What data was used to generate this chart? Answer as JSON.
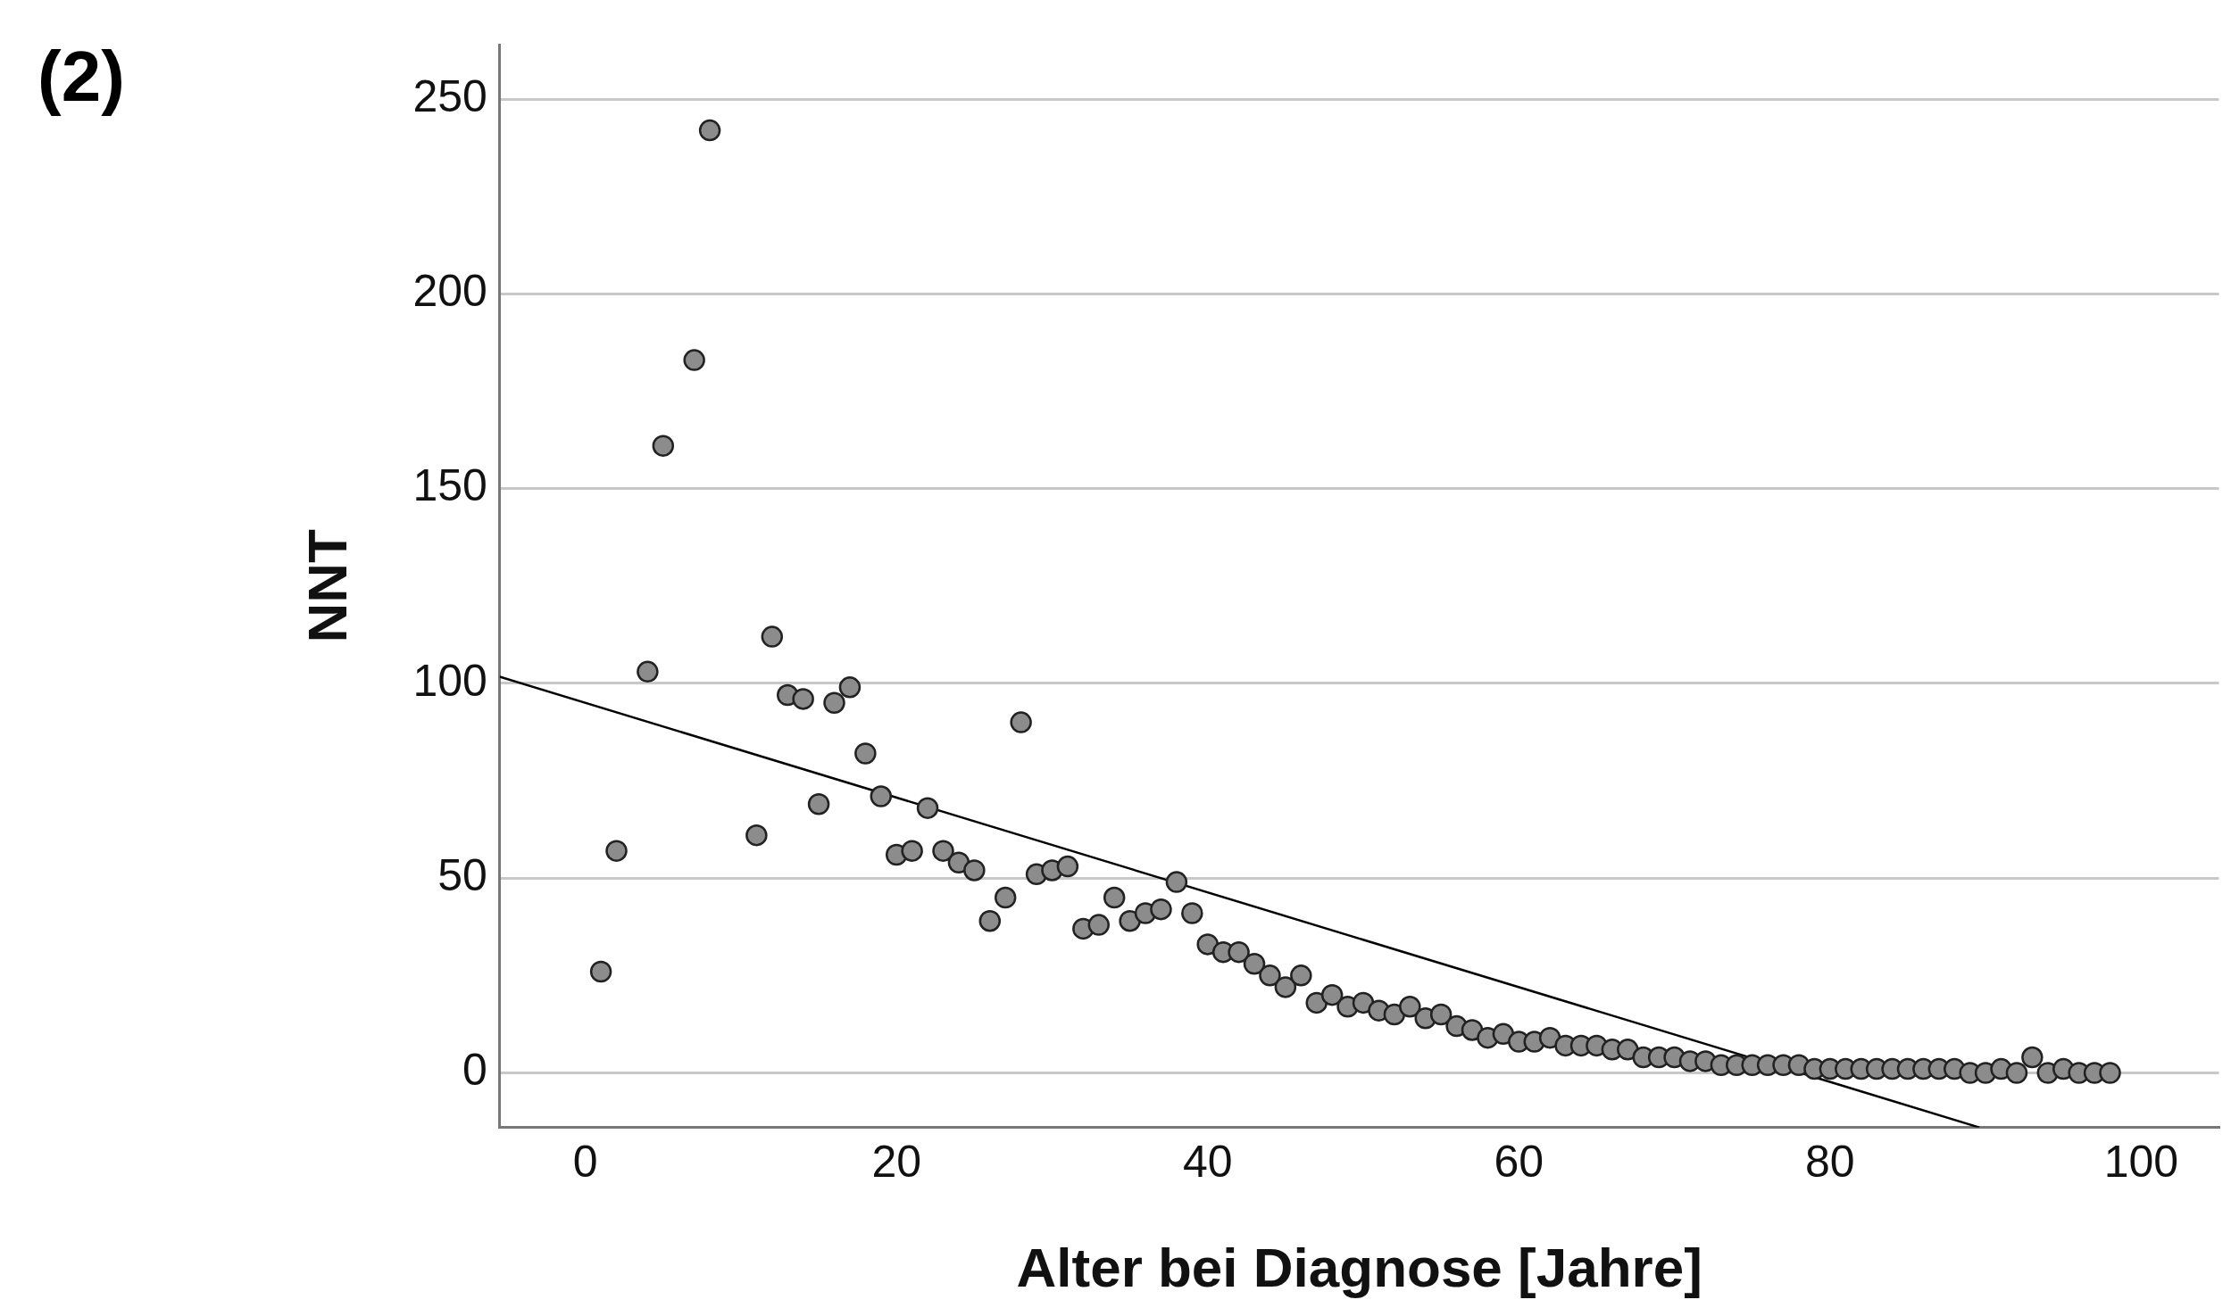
{
  "chart_data": {
    "type": "scatter",
    "title": "(2)",
    "xlabel": "Alter bei Diagnose [Jahre]",
    "ylabel": "NNT",
    "xlim": [
      -5.5,
      105
    ],
    "xticks": [
      0,
      20,
      40,
      60,
      80,
      100
    ],
    "ylim": [
      -14,
      264
    ],
    "yticks": [
      0,
      50,
      100,
      150,
      200,
      250
    ],
    "grid": "y",
    "legend": false,
    "marker": "circle",
    "series": [
      {
        "color": "#8c8c8c",
        "x": [
          1,
          2,
          4,
          5,
          7,
          8,
          11,
          12,
          13,
          14,
          15,
          16,
          17,
          18,
          19,
          20,
          21,
          22,
          23,
          24,
          25,
          26,
          27,
          28,
          29,
          30,
          31,
          32,
          33,
          34,
          35,
          36,
          37,
          38,
          39,
          40,
          41,
          42,
          43,
          44,
          45,
          46,
          47,
          48,
          49,
          50,
          51,
          52,
          53,
          54,
          55,
          56,
          57,
          58,
          59,
          60,
          61,
          62,
          63,
          64,
          65,
          66,
          67,
          68,
          69,
          70,
          71,
          72,
          73,
          74,
          75,
          76,
          77,
          78,
          79,
          80,
          81,
          82,
          83,
          84,
          85,
          86,
          87,
          88,
          89,
          90,
          91,
          92,
          93,
          94,
          95,
          96,
          97,
          98
        ],
        "values": [
          26,
          57,
          103,
          161,
          183,
          242,
          61,
          112,
          97,
          96,
          69,
          95,
          99,
          82,
          71,
          56,
          57,
          68,
          57,
          54,
          52,
          39,
          45,
          90,
          51,
          52,
          53,
          37,
          38,
          45,
          39,
          41,
          42,
          49,
          41,
          33,
          31,
          31,
          28,
          25,
          22,
          25,
          18,
          20,
          17,
          18,
          16,
          15,
          17,
          14,
          15,
          12,
          11,
          9,
          10,
          8,
          8,
          9,
          7,
          7,
          7,
          6,
          6,
          4,
          4,
          4,
          3,
          3,
          2,
          2,
          2,
          2,
          2,
          2,
          1,
          1,
          1,
          1,
          1,
          1,
          1,
          1,
          1,
          1,
          0,
          0,
          1,
          0,
          4,
          0,
          1,
          0,
          0,
          0
        ]
      },
      {
        "type": "line",
        "color": "#000000",
        "marker": "none",
        "x": [
          -5.5,
          89.6
        ],
        "values": [
          101.7,
          -14
        ]
      }
    ]
  }
}
